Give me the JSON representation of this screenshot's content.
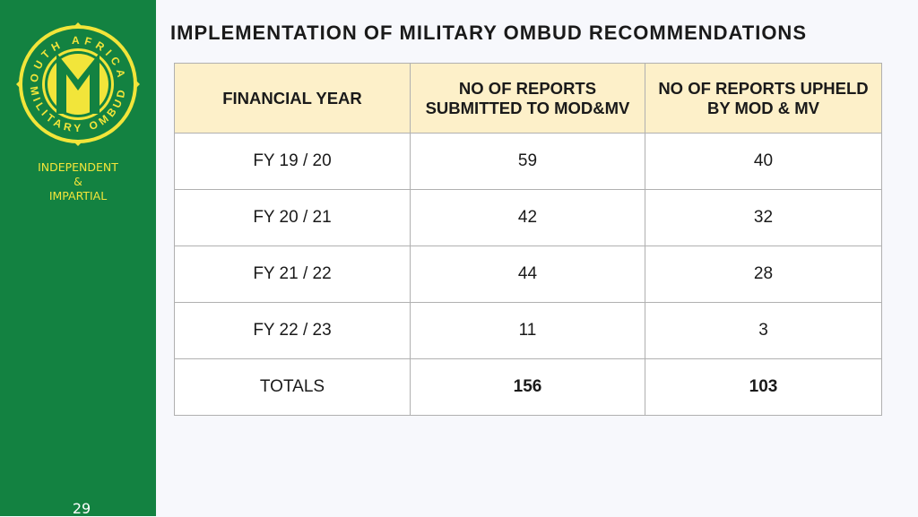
{
  "sidebar": {
    "logo_text": "SOUTH AFRICAN MILITARY OMBUD",
    "motto": [
      "INDEPENDENT",
      "&",
      "IMPARTIAL"
    ],
    "page_number": "29",
    "colors": {
      "background": "#138241",
      "accent": "#f2e53a"
    }
  },
  "title": "IMPLEMENTATION OF MILITARY OMBUD RECOMMENDATIONS",
  "table": {
    "headers": [
      "FINANCIAL YEAR",
      "NO OF REPORTS SUBMITTED TO MOD&MV",
      "NO OF REPORTS UPHELD BY MOD & MV"
    ],
    "rows": [
      [
        "FY 19 / 20",
        "59",
        "40"
      ],
      [
        "FY 20 / 21",
        "42",
        "32"
      ],
      [
        "FY 21 / 22",
        "44",
        "28"
      ],
      [
        "FY 22 / 23",
        "11",
        "3"
      ]
    ],
    "totals": [
      "TOTALS",
      "156",
      "103"
    ],
    "header_color": "#fdf0c9"
  }
}
